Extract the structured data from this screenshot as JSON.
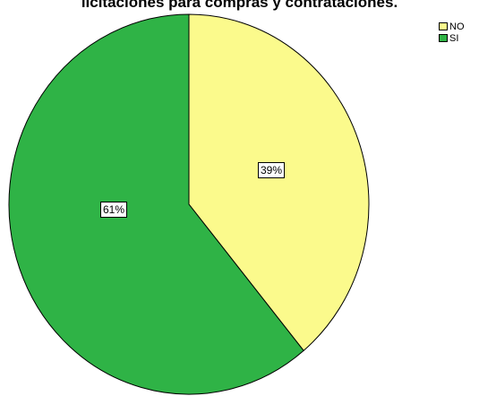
{
  "chart_data": {
    "type": "pie",
    "title": "licitaciones para compras y contrataciones.",
    "categories": [
      "NO",
      "SI"
    ],
    "values": [
      39,
      61
    ],
    "labels": [
      "39%",
      "61%"
    ],
    "colors": [
      "#fbfa8c",
      "#2fb346"
    ],
    "legend_position": "top-right",
    "start_angle": "12 o'clock",
    "direction": "clockwise"
  }
}
